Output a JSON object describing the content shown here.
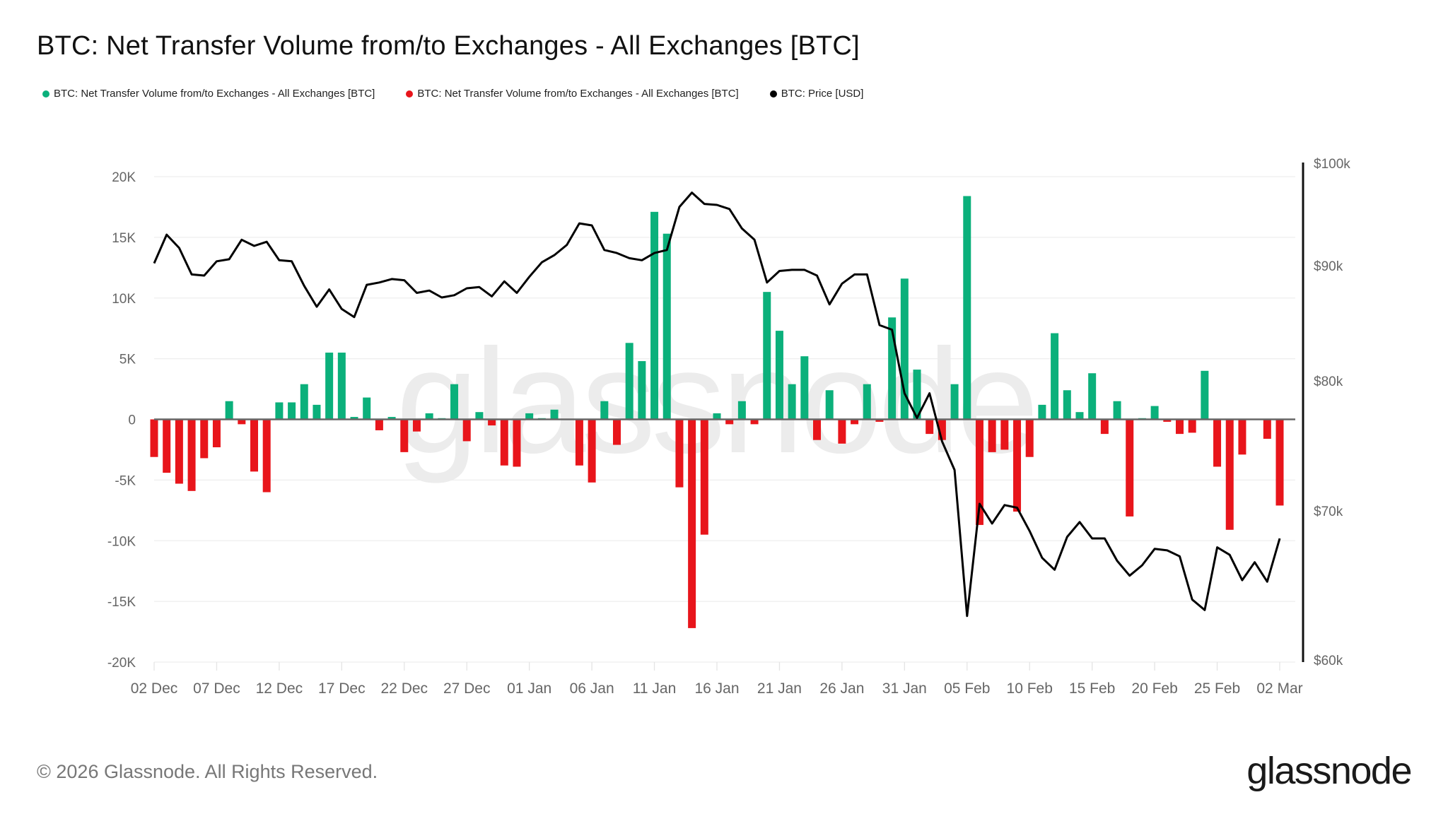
{
  "header": {
    "title": "BTC: Net Transfer Volume from/to Exchanges - All Exchanges [BTC]"
  },
  "legend": [
    {
      "label": "BTC: Net Transfer Volume from/to Exchanges - All Exchanges [BTC]",
      "color": "#0bb07b"
    },
    {
      "label": "BTC: Net Transfer Volume from/to Exchanges - All Exchanges [BTC]",
      "color": "#e8151b"
    },
    {
      "label": "BTC: Price [USD]",
      "color": "#000000"
    }
  ],
  "footer": {
    "copyright": "© 2026 Glassnode. All Rights Reserved.",
    "brand": "glassnode"
  },
  "watermark": "glassnode",
  "colors": {
    "positive": "#0bb07b",
    "negative": "#e8151b",
    "price": "#000000",
    "grid": "#eeeeee",
    "axis_text": "#666666"
  },
  "chart_data": {
    "type": "bar",
    "title": "BTC: Net Transfer Volume from/to Exchanges - All Exchanges [BTC]",
    "xlabel": "",
    "ylabel": "",
    "grid": true,
    "legend_position": "top-left",
    "ylim": [
      -20000,
      20000
    ],
    "y_ticks": [
      "20K",
      "15K",
      "10K",
      "5K",
      "0",
      "-5K",
      "-10K",
      "-15K",
      "-20K"
    ],
    "y_tick_values": [
      20000,
      15000,
      10000,
      5000,
      0,
      -5000,
      -10000,
      -15000,
      -20000
    ],
    "y2_ticks": [
      "$100k",
      "$90k",
      "$80k",
      "$70k",
      "$60k"
    ],
    "y2_tick_values": [
      100000,
      90000,
      80000,
      70000,
      60000
    ],
    "y2lim": [
      60000,
      100000
    ],
    "x_tick_labels": [
      "02 Dec",
      "07 Dec",
      "12 Dec",
      "17 Dec",
      "22 Dec",
      "27 Dec",
      "01 Jan",
      "06 Jan",
      "11 Jan",
      "16 Jan",
      "21 Jan",
      "26 Jan",
      "31 Jan",
      "05 Feb",
      "10 Feb",
      "15 Feb",
      "20 Feb",
      "25 Feb",
      "02 Mar"
    ],
    "x_tick_day_index": [
      0,
      5,
      10,
      15,
      20,
      25,
      30,
      35,
      40,
      45,
      50,
      55,
      60,
      65,
      70,
      75,
      80,
      85,
      90
    ],
    "start_date": "02 Dec",
    "end_date": "02 Mar",
    "series": [
      {
        "name": "BTC: Net Transfer Volume from/to Exchanges - All Exchanges [BTC]",
        "axis": "left",
        "kind": "bar",
        "values": [
          -3100,
          -4400,
          -5300,
          -5900,
          -3200,
          -2300,
          1500,
          -400,
          -4300,
          -6000,
          1400,
          1400,
          2900,
          1200,
          5500,
          5500,
          200,
          1800,
          -900,
          200,
          -2700,
          -1000,
          500,
          100,
          2900,
          -1800,
          600,
          -500,
          -3800,
          -3900,
          500,
          100,
          800,
          0,
          -3800,
          -5200,
          1500,
          -2100,
          6300,
          4800,
          17100,
          15300,
          -5600,
          -17200,
          -9500,
          500,
          -400,
          1500,
          -400,
          10500,
          7300,
          2900,
          5200,
          -1700,
          2400,
          -2000,
          -400,
          2900,
          -200,
          8400,
          11600,
          4100,
          -1200,
          -1700,
          2900,
          18400,
          -8700,
          -2700,
          -2500,
          -7600,
          -3100,
          1200,
          7100,
          2400,
          600,
          3800,
          -1200,
          1500,
          -8000,
          100,
          1100,
          -200,
          -1200,
          -1100,
          4000,
          -3900,
          -9100,
          -2900,
          0,
          -1600,
          -7100
        ]
      },
      {
        "name": "BTC: Price [USD]",
        "axis": "right",
        "kind": "line",
        "values": [
          90300,
          93100,
          91800,
          89300,
          89200,
          90500,
          90700,
          92600,
          92000,
          92400,
          90600,
          90500,
          88300,
          86500,
          88000,
          86300,
          85600,
          88400,
          88600,
          88900,
          88800,
          87700,
          87900,
          87300,
          87500,
          88100,
          88200,
          87400,
          88700,
          87700,
          89100,
          90400,
          91100,
          92100,
          94200,
          94000,
          91600,
          91300,
          90800,
          90600,
          91300,
          91600,
          95800,
          97200,
          96100,
          96000,
          95600,
          93700,
          92600,
          88600,
          89600,
          89700,
          89700,
          89200,
          86700,
          88500,
          89300,
          89300,
          84900,
          84500,
          79100,
          77200,
          79100,
          75400,
          73200,
          63000,
          70600,
          69200,
          70500,
          70300,
          68700,
          66900,
          66100,
          68300,
          69300,
          68200,
          68200,
          66700,
          65700,
          66400,
          67500,
          67400,
          67000,
          64100,
          63400,
          67600,
          67100,
          65400,
          66600,
          65300,
          68200
        ]
      }
    ]
  }
}
